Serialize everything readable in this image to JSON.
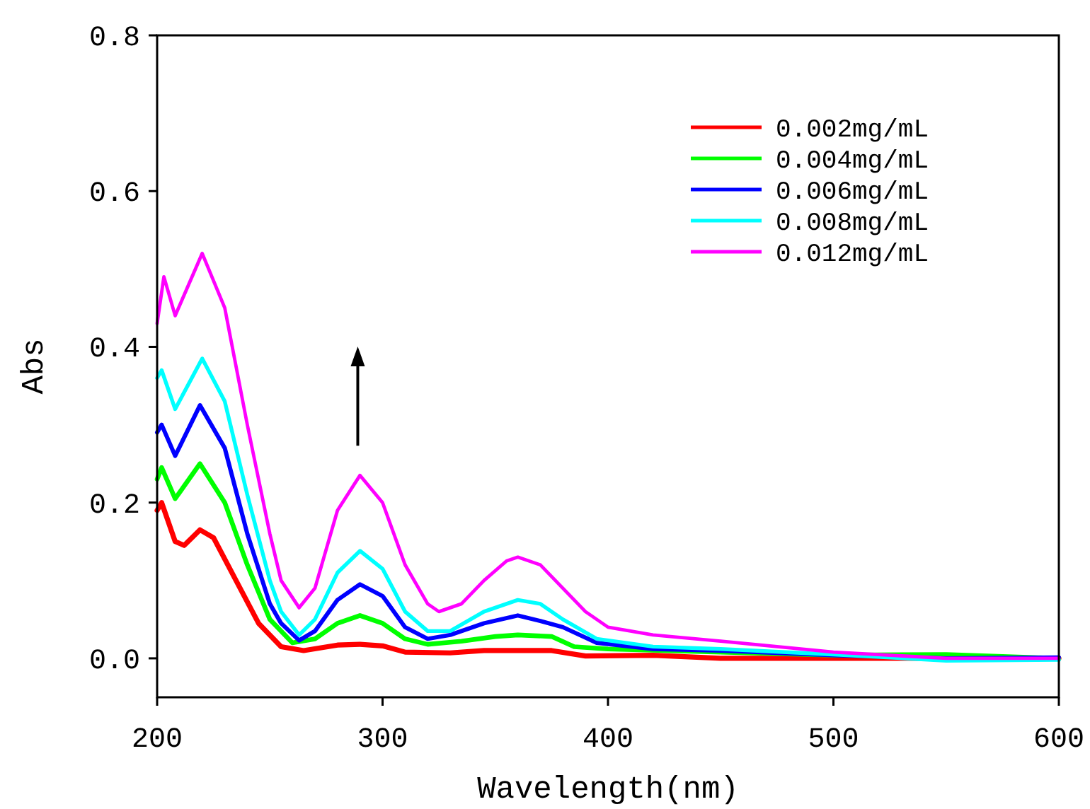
{
  "chart_data": {
    "type": "line",
    "xlabel": "Wavelength(nm)",
    "ylabel": "Abs",
    "xlim": [
      200,
      600
    ],
    "xticks": [
      200,
      300,
      400,
      500,
      600
    ],
    "ylim": [
      -0.05,
      0.8
    ],
    "yticks": [
      {
        "value": 0,
        "label": "0.0"
      },
      {
        "value": 0.2,
        "label": "0.2"
      },
      {
        "value": 0.4,
        "label": "0.4"
      },
      {
        "value": 0.6,
        "label": "0.6"
      },
      {
        "value": 0.8,
        "label": "0.8"
      }
    ],
    "grid": false,
    "legend": "top right",
    "marker": "none",
    "line_style": "solid",
    "series": [
      {
        "name": "0.002mg/mL",
        "color": "#ff0000",
        "x": [
          200,
          202,
          208,
          212,
          219,
          225,
          235,
          245,
          255,
          265,
          280,
          290,
          300,
          310,
          330,
          345,
          360,
          375,
          390,
          420,
          450,
          500,
          550,
          600
        ],
        "values": [
          0.19,
          0.2,
          0.15,
          0.145,
          0.165,
          0.155,
          0.1,
          0.045,
          0.015,
          0.01,
          0.017,
          0.018,
          0.016,
          0.008,
          0.007,
          0.01,
          0.01,
          0.01,
          0.003,
          0.004,
          0,
          0,
          0,
          0
        ]
      },
      {
        "name": "0.004mg/mL",
        "color": "#00ff00",
        "x": [
          200,
          202,
          208,
          219,
          230,
          240,
          250,
          260,
          270,
          280,
          290,
          300,
          310,
          320,
          335,
          350,
          360,
          375,
          385,
          400,
          450,
          500,
          550,
          600
        ],
        "values": [
          0.23,
          0.245,
          0.205,
          0.25,
          0.2,
          0.12,
          0.05,
          0.02,
          0.025,
          0.045,
          0.055,
          0.045,
          0.025,
          0.018,
          0.022,
          0.028,
          0.03,
          0.028,
          0.015,
          0.012,
          0.008,
          0.004,
          0.005,
          0
        ]
      },
      {
        "name": "0.006mg/mL",
        "color": "#0000ff",
        "x": [
          200,
          202,
          208,
          219,
          230,
          240,
          250,
          255,
          263,
          270,
          280,
          290,
          300,
          310,
          320,
          330,
          345,
          360,
          370,
          380,
          395,
          420,
          450,
          500,
          550,
          600
        ],
        "values": [
          0.29,
          0.3,
          0.26,
          0.325,
          0.27,
          0.16,
          0.07,
          0.045,
          0.023,
          0.035,
          0.075,
          0.095,
          0.08,
          0.04,
          0.025,
          0.03,
          0.045,
          0.055,
          0.048,
          0.04,
          0.02,
          0.012,
          0.01,
          0.004,
          0,
          0.001
        ]
      },
      {
        "name": "0.008mg/mL",
        "color": "#00ffff",
        "x": [
          200,
          202,
          208,
          220,
          230,
          240,
          250,
          255,
          263,
          270,
          280,
          290,
          300,
          310,
          320,
          330,
          345,
          360,
          370,
          380,
          395,
          420,
          450,
          500,
          550,
          600
        ],
        "values": [
          0.36,
          0.37,
          0.32,
          0.385,
          0.33,
          0.21,
          0.1,
          0.06,
          0.03,
          0.05,
          0.11,
          0.138,
          0.115,
          0.06,
          0.035,
          0.035,
          0.06,
          0.075,
          0.07,
          0.05,
          0.025,
          0.015,
          0.012,
          0.005,
          -0.003,
          -0.002
        ]
      },
      {
        "name": "0.012mg/mL",
        "color": "#ff00ff",
        "x": [
          200,
          203,
          208,
          220,
          230,
          240,
          250,
          255,
          263,
          270,
          280,
          290,
          300,
          310,
          320,
          325,
          335,
          345,
          355,
          360,
          370,
          380,
          390,
          400,
          420,
          450,
          500,
          550,
          600
        ],
        "values": [
          0.43,
          0.49,
          0.44,
          0.52,
          0.45,
          0.3,
          0.16,
          0.1,
          0.065,
          0.09,
          0.19,
          0.235,
          0.2,
          0.12,
          0.07,
          0.06,
          0.07,
          0.1,
          0.125,
          0.13,
          0.12,
          0.09,
          0.06,
          0.04,
          0.03,
          0.022,
          0.008,
          0,
          0
        ]
      }
    ]
  }
}
